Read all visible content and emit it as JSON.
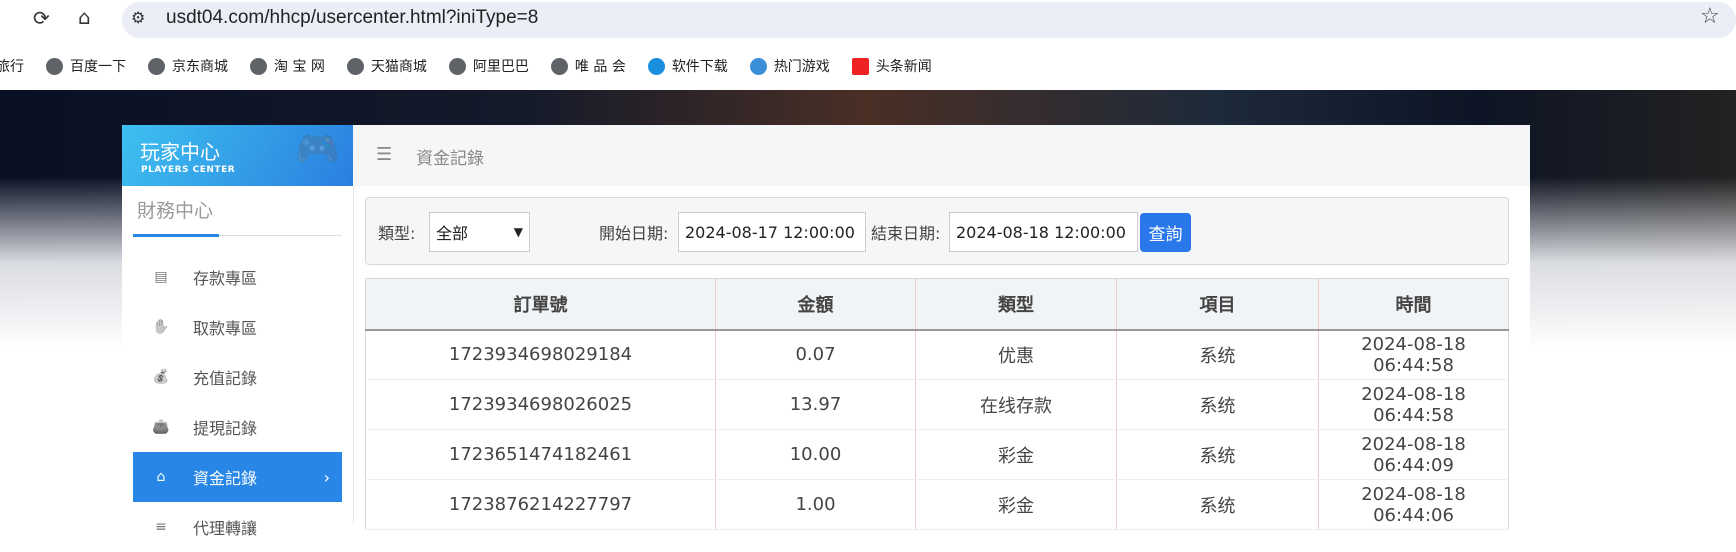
{
  "browser": {
    "url": "usdt04.com/hhcp/usercenter.html?iniType=8",
    "bookmarks": [
      {
        "label": "旅行",
        "icon": "globe-icon"
      },
      {
        "label": "百度一下",
        "icon": "globe-icon"
      },
      {
        "label": "京东商城",
        "icon": "globe-icon"
      },
      {
        "label": "淘 宝 网",
        "icon": "globe-icon"
      },
      {
        "label": "天猫商城",
        "icon": "globe-icon"
      },
      {
        "label": "阿里巴巴",
        "icon": "globe-icon"
      },
      {
        "label": "唯 品 会",
        "icon": "globe-icon"
      },
      {
        "label": "软件下载",
        "icon": "download-icon"
      },
      {
        "label": "热门游戏",
        "icon": "game-icon"
      },
      {
        "label": "头条新闻",
        "icon": "toutiao-icon"
      }
    ]
  },
  "panel": {
    "title": "玩家中心",
    "subtitle": "PLAYERS CENTER",
    "breadcrumb": "資金記錄"
  },
  "sidebar": {
    "section": "財務中心",
    "items": [
      {
        "label": "存款專區",
        "icon": "card-icon"
      },
      {
        "label": "取款專區",
        "icon": "hand-money-icon"
      },
      {
        "label": "充值記錄",
        "icon": "money-bag-icon"
      },
      {
        "label": "提現記錄",
        "icon": "wallet-icon"
      },
      {
        "label": "資金記錄",
        "icon": "house-money-icon",
        "active": true
      },
      {
        "label": "代理轉讓",
        "icon": "list-icon"
      }
    ]
  },
  "filter": {
    "type_label": "類型:",
    "type_value": "全部",
    "start_label": "開始日期:",
    "start_value": "2024-08-17 12:00:00",
    "end_label": "結束日期:",
    "end_value": "2024-08-18 12:00:00",
    "query_label": "查詢"
  },
  "table": {
    "headers": [
      "訂單號",
      "金額",
      "類型",
      "項目",
      "時間"
    ],
    "rows": [
      [
        "1723934698029184",
        "0.07",
        "优惠",
        "系统",
        "2024-08-18 06:44:58"
      ],
      [
        "1723934698026025",
        "13.97",
        "在线存款",
        "系统",
        "2024-08-18 06:44:58"
      ],
      [
        "1723651474182461",
        "10.00",
        "彩金",
        "系统",
        "2024-08-18 06:44:09"
      ],
      [
        "1723876214227797",
        "1.00",
        "彩金",
        "系统",
        "2024-08-18 06:44:06"
      ]
    ]
  },
  "colors": {
    "accent": "#2886e6",
    "button": "#2a77ec"
  }
}
